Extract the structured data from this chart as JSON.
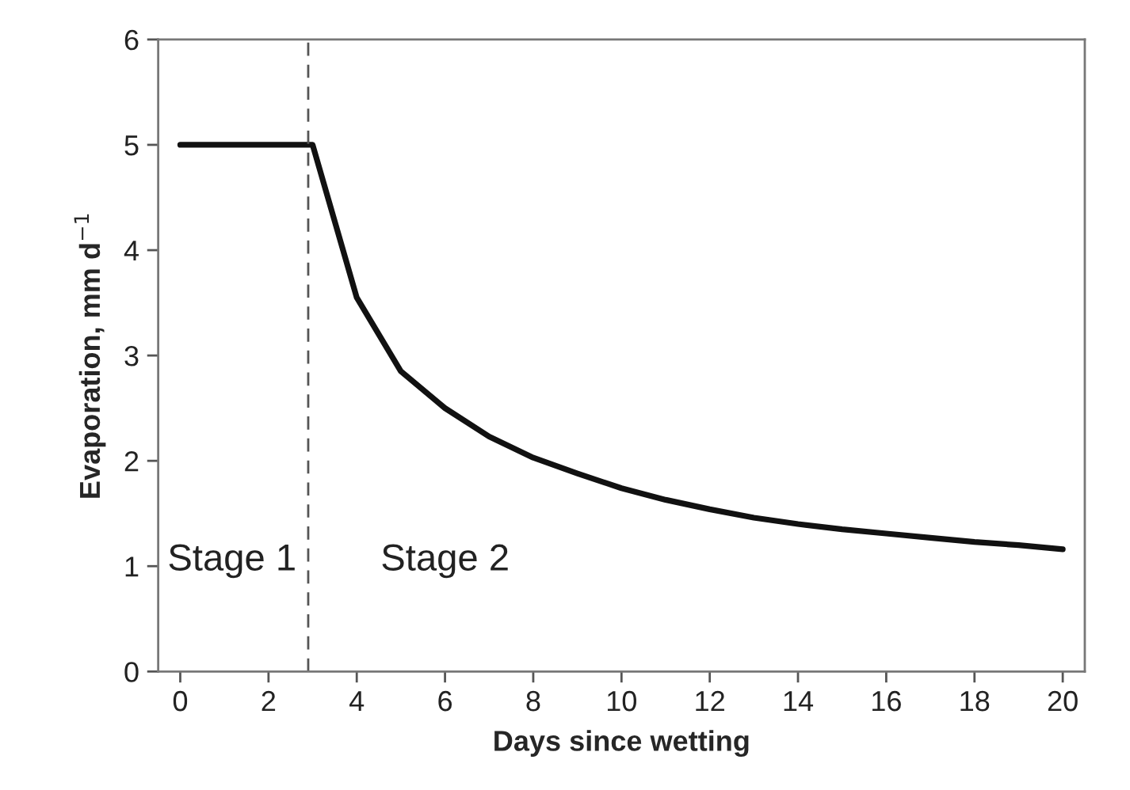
{
  "chart_data": {
    "type": "line",
    "xlabel": "Days since wetting",
    "ylabel": "Evaporation, mm d$^{−1}$",
    "x": [
      0,
      1,
      2,
      3,
      4,
      5,
      6,
      7,
      8,
      9,
      10,
      11,
      12,
      13,
      14,
      15,
      16,
      17,
      18,
      19,
      20
    ],
    "series": [
      {
        "color": "#111111",
        "values": [
          5,
          5,
          5,
          5,
          3.55,
          2.85,
          2.5,
          2.23,
          2.03,
          1.88,
          1.74,
          1.63,
          1.54,
          1.46,
          1.4,
          1.35,
          1.31,
          1.27,
          1.23,
          1.2,
          1.16
        ]
      }
    ],
    "xlim": [
      -0.5,
      20.5
    ],
    "ylim": [
      0,
      6
    ],
    "xticks": [
      0,
      2,
      4,
      6,
      8,
      10,
      12,
      14,
      16,
      18,
      20
    ],
    "yticks": [
      0,
      1,
      2,
      3,
      4,
      5,
      6
    ],
    "ref_lines": [
      {
        "axis": "x",
        "value": 2.9,
        "color": "#555555",
        "line_style": "dashed"
      }
    ],
    "annotations": [
      "Stage 1",
      "Stage 2"
    ],
    "grid": false,
    "legend": false,
    "marker": "none",
    "line_style": "solid"
  }
}
